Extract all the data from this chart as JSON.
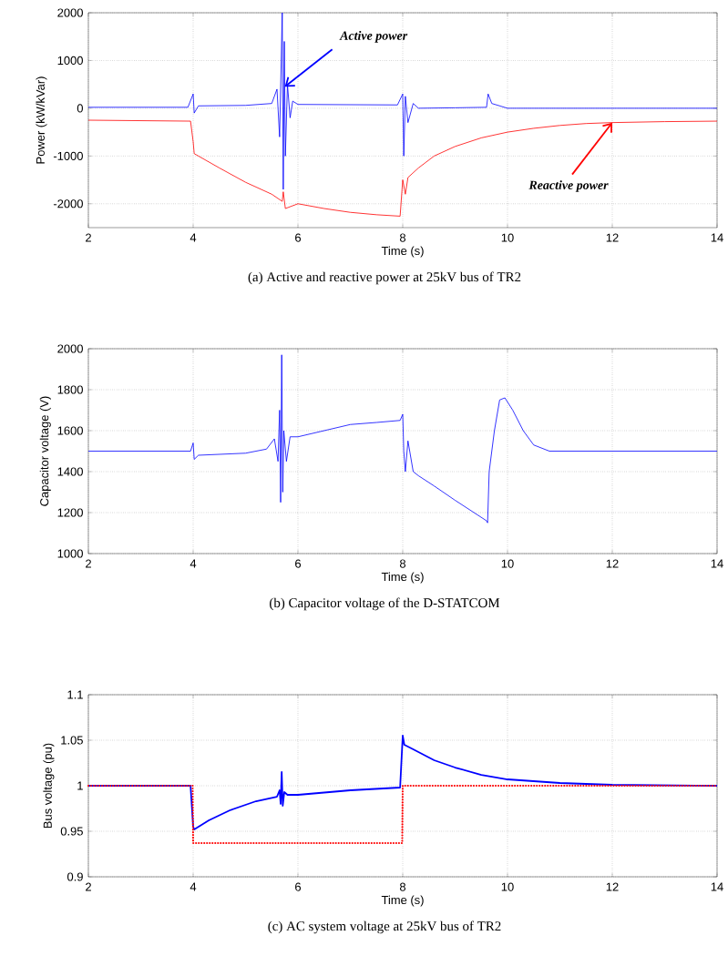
{
  "chart_data": [
    {
      "type": "line",
      "title": "(a) Active and reactive power at 25kV bus of TR2",
      "xlabel": "Time (s)",
      "ylabel": "Power (kW/kVar)",
      "xlim": [
        2,
        14
      ],
      "ylim": [
        -2500,
        2000
      ],
      "xticks": [
        2,
        4,
        6,
        8,
        10,
        12,
        14
      ],
      "yticks": [
        -2000,
        -1000,
        0,
        1000,
        2000
      ],
      "grid": true,
      "line_style": "solid",
      "annotations": [
        {
          "text": "Active power",
          "x": 5.75,
          "y": 450
        },
        {
          "text": "Reactive power",
          "x": 12,
          "y": -300
        }
      ],
      "series": [
        {
          "color": "#0000ff",
          "x": [
            2,
            3.9,
            4,
            4.02,
            4.1,
            5,
            5.5,
            5.6,
            5.65,
            5.7,
            5.72,
            5.74,
            5.76,
            5.8,
            5.85,
            5.9,
            6,
            7.9,
            8,
            8.02,
            8.05,
            8.1,
            8.2,
            8.3,
            9,
            9.6,
            9.63,
            9.7,
            10,
            14
          ],
          "values": [
            20,
            20,
            300,
            -100,
            50,
            60,
            100,
            400,
            -600,
            2000,
            -1700,
            1400,
            -1000,
            500,
            -200,
            150,
            80,
            70,
            300,
            -1000,
            250,
            -300,
            100,
            0,
            10,
            20,
            300,
            100,
            0,
            0
          ]
        },
        {
          "color": "#ff0000",
          "x": [
            2,
            3.95,
            4,
            4.02,
            4.5,
            5,
            5.5,
            5.7,
            5.72,
            5.76,
            6,
            6.5,
            7,
            7.5,
            7.95,
            8,
            8.05,
            8.1,
            8.3,
            8.6,
            9,
            9.5,
            10,
            10.5,
            11,
            11.5,
            12,
            13,
            14
          ],
          "values": [
            -250,
            -270,
            -700,
            -950,
            -1250,
            -1550,
            -1800,
            -1950,
            -1750,
            -2100,
            -2000,
            -2100,
            -2180,
            -2230,
            -2260,
            -1500,
            -1800,
            -1450,
            -1250,
            -1000,
            -800,
            -620,
            -500,
            -420,
            -360,
            -320,
            -300,
            -280,
            -270
          ]
        }
      ]
    },
    {
      "type": "line",
      "title": "(b) Capacitor voltage of the D-STATCOM",
      "xlabel": "Time (s)",
      "ylabel": "Capacitor voltage (V)",
      "xlim": [
        2,
        14
      ],
      "ylim": [
        1000,
        2000
      ],
      "xticks": [
        2,
        4,
        6,
        8,
        10,
        12,
        14
      ],
      "yticks": [
        1000,
        1200,
        1400,
        1600,
        1800,
        2000
      ],
      "grid": true,
      "line_style": "solid",
      "series": [
        {
          "color": "#0000ff",
          "x": [
            2,
            3.95,
            4,
            4.02,
            4.1,
            5,
            5.4,
            5.55,
            5.62,
            5.65,
            5.67,
            5.69,
            5.71,
            5.73,
            5.78,
            5.85,
            6,
            6.5,
            7,
            7.5,
            7.95,
            8,
            8.02,
            8.05,
            8.1,
            8.2,
            8.3,
            8.6,
            9,
            9.3,
            9.6,
            9.62,
            9.65,
            9.75,
            9.85,
            9.95,
            10.1,
            10.3,
            10.5,
            10.8,
            14
          ],
          "values": [
            1500,
            1500,
            1540,
            1460,
            1480,
            1490,
            1510,
            1560,
            1450,
            1700,
            1250,
            1970,
            1300,
            1600,
            1450,
            1570,
            1570,
            1600,
            1630,
            1640,
            1650,
            1680,
            1500,
            1400,
            1550,
            1400,
            1380,
            1330,
            1260,
            1210,
            1160,
            1150,
            1400,
            1600,
            1750,
            1760,
            1700,
            1600,
            1530,
            1500,
            1500
          ]
        }
      ]
    },
    {
      "type": "line",
      "title": "(c) AC system voltage at 25kV bus of TR2",
      "xlabel": "Time (s)",
      "ylabel": "Bus voltage (pu)",
      "xlim": [
        2,
        14
      ],
      "ylim": [
        0.9,
        1.1
      ],
      "xticks": [
        2,
        4,
        6,
        8,
        10,
        12,
        14
      ],
      "yticks": [
        0.9,
        0.95,
        1,
        1.05,
        1.1
      ],
      "grid": true,
      "series": [
        {
          "color": "#0000ff",
          "line_style": "solid",
          "x": [
            2,
            3.95,
            4,
            4.02,
            4.3,
            4.7,
            5.2,
            5.6,
            5.65,
            5.67,
            5.69,
            5.71,
            5.74,
            5.8,
            6,
            7,
            7.95,
            8,
            8.03,
            8.2,
            8.6,
            9,
            9.5,
            10,
            11,
            12,
            14
          ],
          "values": [
            1,
            1,
            0.955,
            0.952,
            0.962,
            0.973,
            0.983,
            0.988,
            0.995,
            0.98,
            1.015,
            0.978,
            0.993,
            0.99,
            0.99,
            0.995,
            0.998,
            1.055,
            1.045,
            1.04,
            1.028,
            1.02,
            1.012,
            1.007,
            1.003,
            1.001,
            1
          ]
        },
        {
          "color": "#ff0000",
          "line_style": "dotted",
          "x": [
            2,
            3.99,
            4,
            4.5,
            7.99,
            8,
            14
          ],
          "values": [
            1,
            1,
            0.937,
            0.937,
            0.937,
            1,
            1
          ]
        }
      ]
    }
  ]
}
